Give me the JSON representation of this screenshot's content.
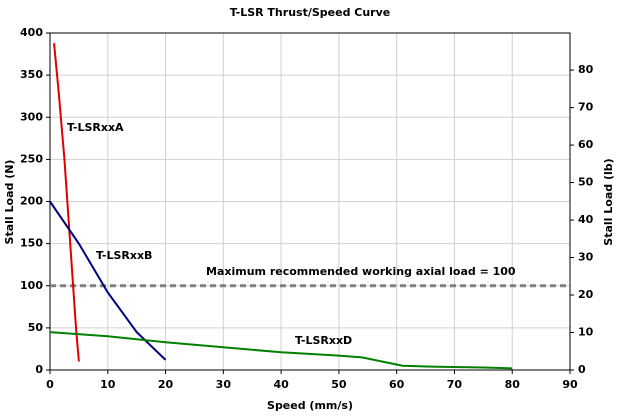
{
  "chart_data": {
    "type": "line",
    "title": "T-LSR Thrust/Speed Curve",
    "x_label": "Speed (mm/s)",
    "y_label": "Stall Load (N)",
    "y2_label": "Stall Load (lb)",
    "xlim": [
      0,
      90
    ],
    "xticks": [
      0,
      10,
      20,
      30,
      40,
      50,
      60,
      70,
      80,
      90
    ],
    "ylim": [
      0,
      400
    ],
    "yticks": [
      0,
      50,
      100,
      150,
      200,
      250,
      300,
      350,
      400
    ],
    "y2lim": [
      0,
      89.9
    ],
    "y2ticks": [
      0,
      10,
      20,
      30,
      40,
      50,
      60,
      70,
      80
    ],
    "grid": true,
    "hline": {
      "value": 100,
      "label": "Maximum recommended working axial load = 100",
      "color": "#808080"
    },
    "series": [
      {
        "name": "T-LSRxxA",
        "color": "#e00000",
        "x": [
          0.7,
          1.5,
          2.5,
          3.5,
          4.0,
          4.5,
          5.0
        ],
        "values": [
          388,
          330,
          250,
          150,
          100,
          50,
          10
        ]
      },
      {
        "name": "T-LSRxxB",
        "color": "#000080",
        "x": [
          0,
          5,
          10,
          15,
          20
        ],
        "values": [
          200,
          150,
          92,
          45,
          12
        ]
      },
      {
        "name": "T-LSRxxD",
        "color": "#008000",
        "x": [
          0,
          10,
          20,
          30,
          40,
          50,
          54,
          61,
          66,
          75,
          80
        ],
        "values": [
          45,
          40,
          33,
          27,
          21,
          17,
          15,
          5,
          4,
          3,
          2
        ]
      }
    ]
  }
}
